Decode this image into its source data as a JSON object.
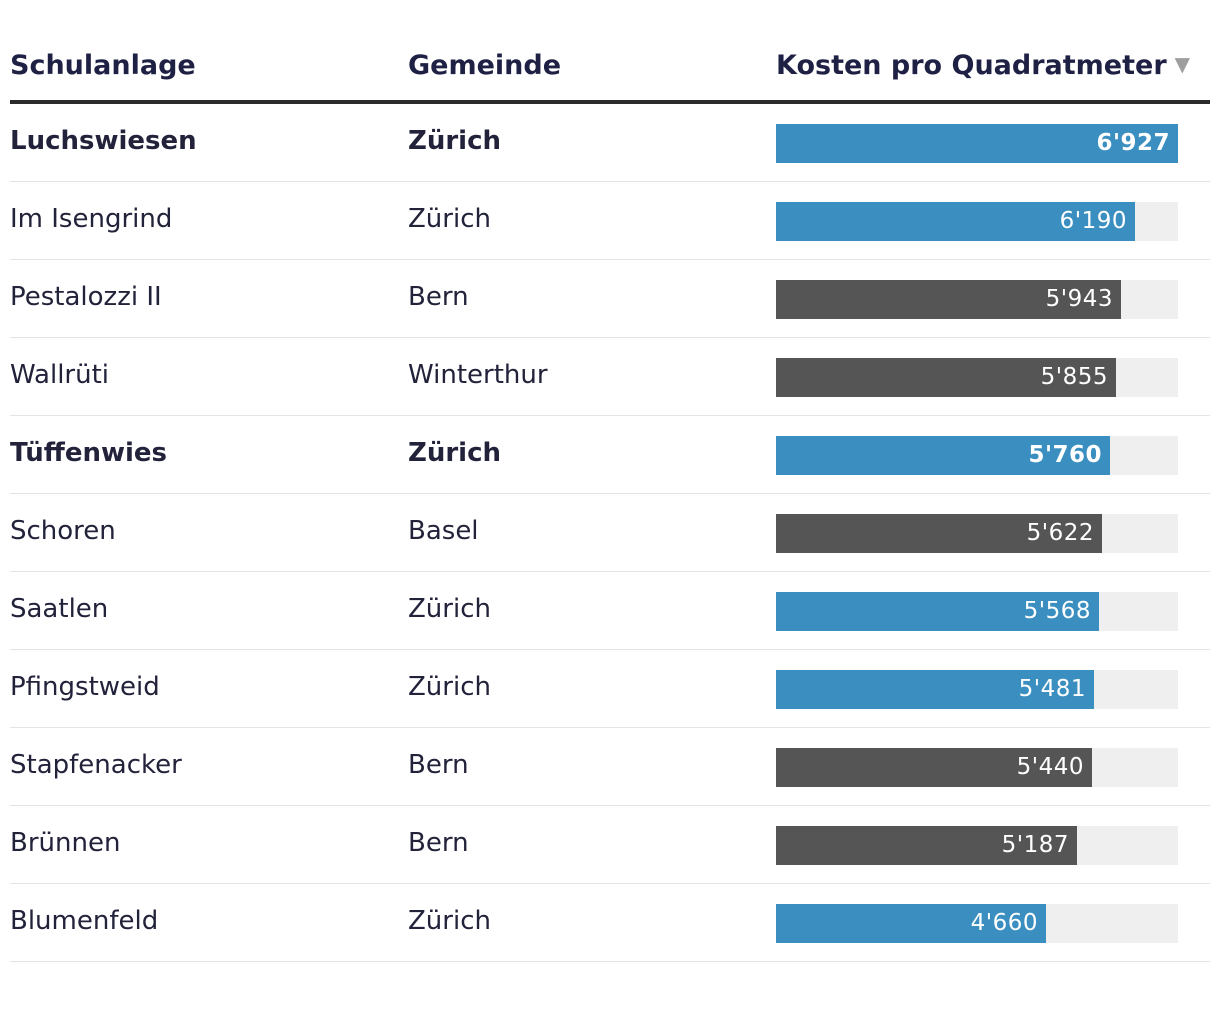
{
  "header": {
    "school": "Schulanlage",
    "city": "Gemeinde",
    "cost": "Kosten pro Quadratmeter",
    "sort_icon": "▼"
  },
  "colors": {
    "highlight": "#3a8fc0",
    "other": "#555555",
    "track": "#efefef"
  },
  "chart_data": {
    "type": "bar",
    "title": "Kosten pro Quadratmeter",
    "xlim": [
      0,
      6927
    ],
    "rows": [
      {
        "school": "Luchswiesen",
        "city": "Zürich",
        "value": 6927,
        "label": "6'927",
        "bold": true
      },
      {
        "school": "Im Isengrind",
        "city": "Zürich",
        "value": 6190,
        "label": "6'190",
        "bold": false
      },
      {
        "school": "Pestalozzi II",
        "city": "Bern",
        "value": 5943,
        "label": "5'943",
        "bold": false
      },
      {
        "school": "Wallrüti",
        "city": "Winterthur",
        "value": 5855,
        "label": "5'855",
        "bold": false
      },
      {
        "school": "Tüffenwies",
        "city": "Zürich",
        "value": 5760,
        "label": "5'760",
        "bold": true
      },
      {
        "school": "Schoren",
        "city": "Basel",
        "value": 5622,
        "label": "5'622",
        "bold": false
      },
      {
        "school": "Saatlen",
        "city": "Zürich",
        "value": 5568,
        "label": "5'568",
        "bold": false
      },
      {
        "school": "Pfingstweid",
        "city": "Zürich",
        "value": 5481,
        "label": "5'481",
        "bold": false
      },
      {
        "school": "Stapfenacker",
        "city": "Bern",
        "value": 5440,
        "label": "5'440",
        "bold": false
      },
      {
        "school": "Brünnen",
        "city": "Bern",
        "value": 5187,
        "label": "5'187",
        "bold": false
      },
      {
        "school": "Blumenfeld",
        "city": "Zürich",
        "value": 4660,
        "label": "4'660",
        "bold": false
      }
    ]
  }
}
